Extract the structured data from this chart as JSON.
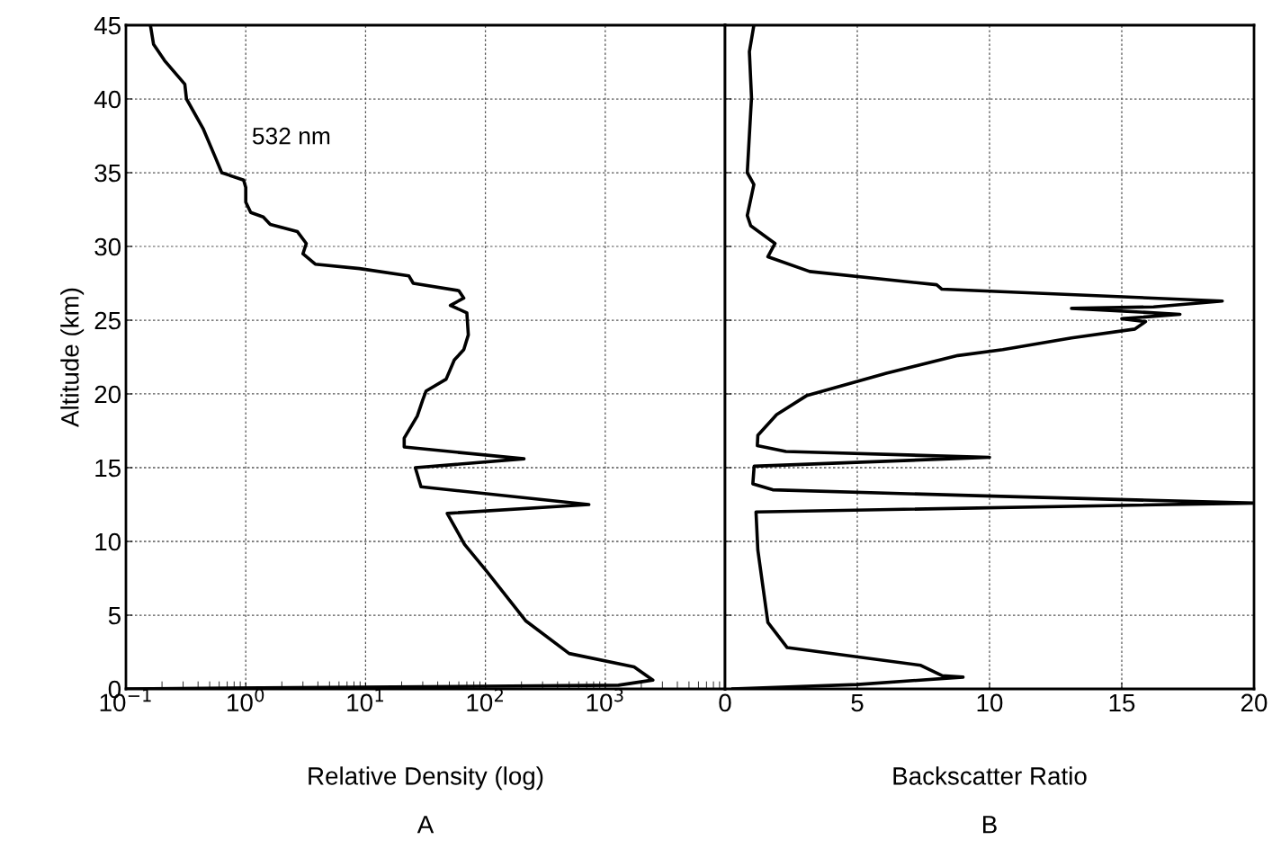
{
  "chart_data": [
    {
      "type": "line",
      "xlabel": "Relative Density (log)",
      "ylabel": "Altitude (km)",
      "log": "x",
      "grid": true,
      "line_style": "solid",
      "marker": "none",
      "xlim": [
        0.1,
        10000
      ],
      "xticks": [
        {
          "value": 0.1,
          "label": "10$^{−1}$"
        },
        {
          "value": 1,
          "label": "10$^{0}$"
        },
        {
          "value": 10,
          "label": "10$^{1}$"
        },
        {
          "value": 100,
          "label": "10$^{2}$"
        },
        {
          "value": 1000,
          "label": "10$^{3}$"
        },
        {
          "value": 10000,
          "label": null
        }
      ],
      "ylim": [
        0,
        45
      ],
      "yticks": [
        0,
        5,
        10,
        15,
        20,
        25,
        30,
        35,
        40,
        45
      ],
      "annotations": [
        "532 nm",
        "A"
      ],
      "series": [
        {
          "color": "#000000",
          "x": [
            0.16,
            0.17,
            0.21,
            0.31,
            0.32,
            0.44,
            0.56,
            0.63,
            0.96,
            1.0,
            1.0,
            1.1,
            1.4,
            1.6,
            2.7,
            3.2,
            3.0,
            3.8,
            8.9,
            23,
            25,
            60,
            66,
            51,
            70,
            72,
            66,
            55,
            47,
            32,
            30,
            27,
            21,
            21,
            210,
            26,
            29,
            730,
            48,
            67,
            102,
            218,
            500,
            1740,
            2500,
            1290,
            0.1
          ],
          "values": [
            45,
            43.7,
            42.6,
            41,
            40,
            38,
            36,
            35,
            34.5,
            34,
            33,
            32.3,
            32,
            31.5,
            31,
            30.2,
            29.5,
            28.8,
            28.5,
            28,
            27.5,
            27,
            26.5,
            26,
            25.5,
            24,
            23,
            22.3,
            21,
            20.2,
            19.6,
            18.5,
            17,
            16.4,
            15.6,
            15,
            13.7,
            12.5,
            11.9,
            9.8,
            8,
            4.6,
            2.4,
            1.5,
            0.6,
            0.25,
            0
          ]
        }
      ]
    },
    {
      "type": "line",
      "xlabel": "Backscatter Ratio",
      "grid": true,
      "line_style": "solid",
      "marker": "none",
      "tick_labels": "x",
      "xlim": [
        0,
        20
      ],
      "xticks": [
        0,
        5,
        10,
        15,
        20
      ],
      "ylim": [
        0,
        45
      ],
      "yticks": [
        0,
        5,
        10,
        15,
        20,
        25,
        30,
        35,
        40,
        45
      ],
      "annotations": [
        "B"
      ],
      "series": [
        {
          "color": "#000000",
          "x": [
            1.09,
            0.92,
            1.0,
            0.84,
            1.09,
            0.84,
            0.97,
            1.89,
            1.62,
            3.2,
            8.0,
            8.2,
            18.8,
            16.2,
            13.1,
            17.2,
            15.0,
            15.9,
            15.5,
            13.1,
            10.5,
            8.8,
            6.1,
            3.1,
            1.95,
            1.24,
            1.22,
            2.3,
            10.0,
            1.1,
            1.05,
            1.8,
            9.5,
            20.0,
            1.17,
            1.24,
            1.62,
            2.35,
            7.4,
            8.2,
            9.0,
            5.0,
            0.3
          ],
          "values": [
            45,
            43.2,
            40.1,
            35.0,
            34.2,
            32.1,
            31.4,
            30.2,
            29.3,
            28.3,
            27.4,
            27.1,
            26.3,
            25.9,
            25.8,
            25.4,
            25.1,
            24.9,
            24.4,
            23.8,
            23.0,
            22.6,
            21.4,
            19.9,
            18.6,
            17.2,
            16.5,
            16.1,
            15.7,
            15.1,
            13.9,
            13.5,
            13.1,
            12.6,
            12.0,
            9.4,
            4.5,
            2.8,
            1.6,
            0.9,
            0.8,
            0.3,
            0.0
          ]
        }
      ]
    }
  ]
}
